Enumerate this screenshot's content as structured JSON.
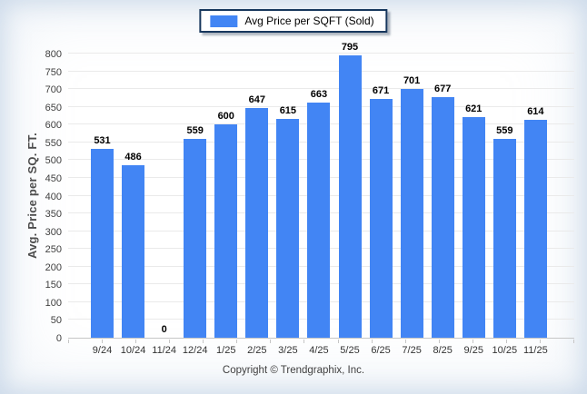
{
  "chart_data": {
    "type": "bar",
    "series_name": "Avg Price per SQFT (Sold)",
    "categories": [
      "9/24",
      "10/24",
      "11/24",
      "12/24",
      "1/25",
      "2/25",
      "3/25",
      "4/25",
      "5/25",
      "6/25",
      "7/25",
      "8/25",
      "9/25",
      "10/25",
      "11/25"
    ],
    "values": [
      531,
      486,
      0,
      559,
      600,
      647,
      615,
      663,
      795,
      671,
      701,
      677,
      621,
      559,
      614
    ],
    "title": "",
    "xlabel": "",
    "ylabel": "Avg. Price per SQ. FT.",
    "ylim": [
      0,
      800
    ],
    "ytick_step": 50,
    "grid": true,
    "value_labels": true,
    "legend_position": "top-center",
    "bar_color": "#4285F4"
  },
  "footer": {
    "copyright": "Copyright © Trendgraphix, Inc."
  }
}
